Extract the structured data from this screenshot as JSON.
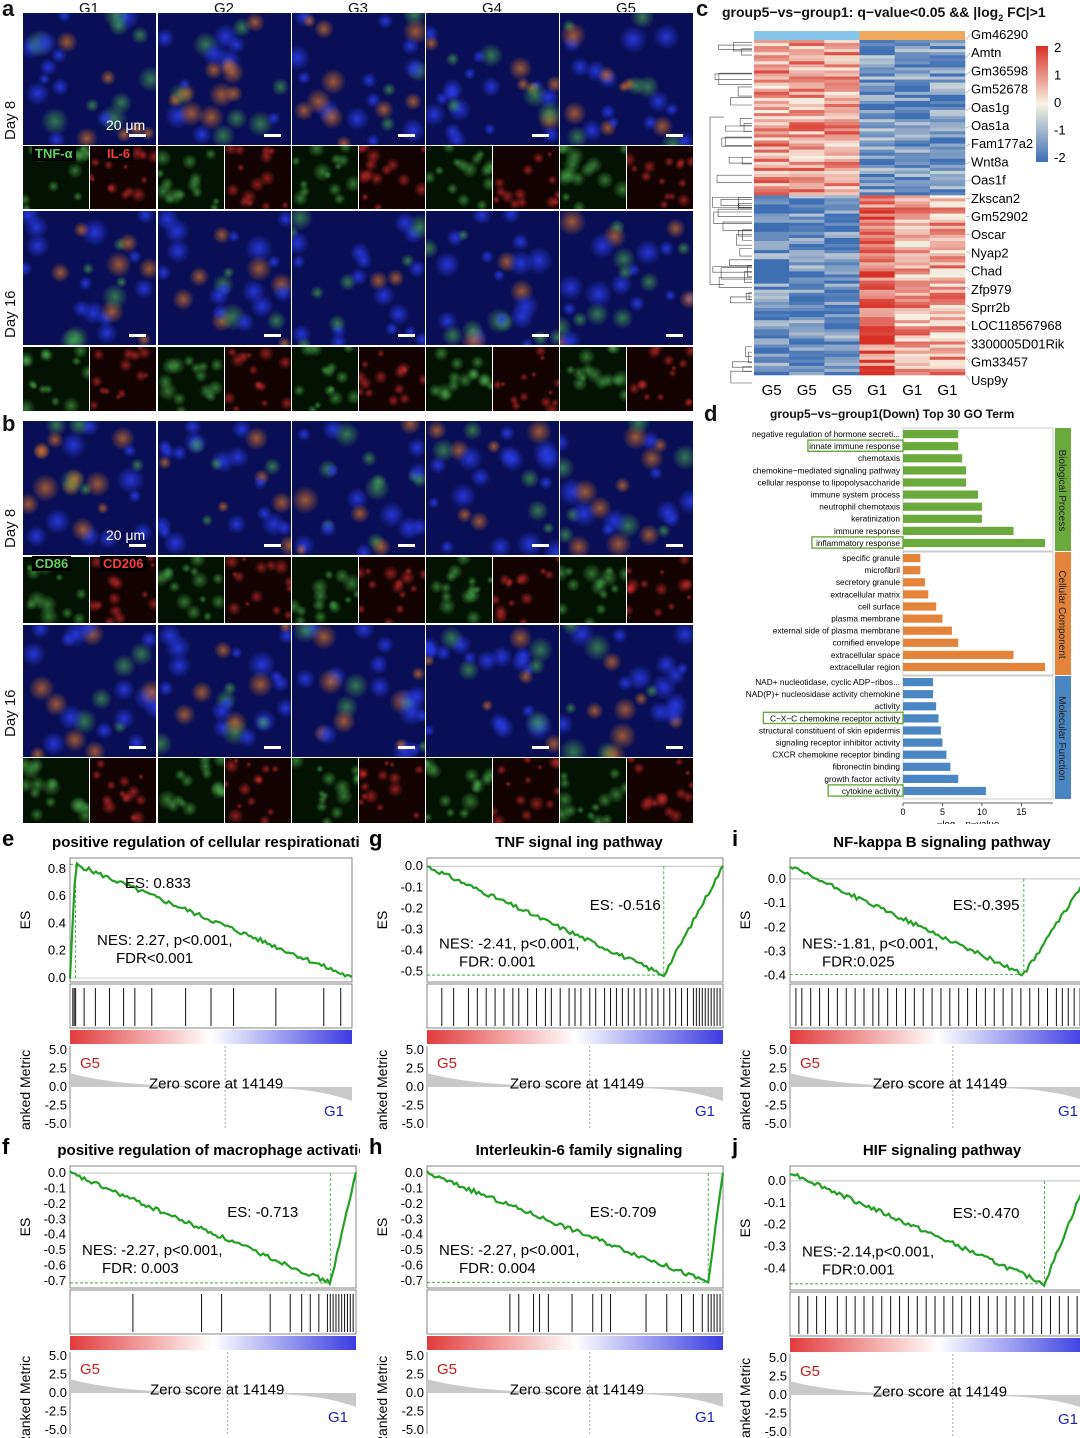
{
  "panel_labels": {
    "a": "a",
    "b": "b",
    "c": "c",
    "d": "d",
    "e": "e",
    "f": "f",
    "g": "g",
    "h": "h",
    "i": "i",
    "j": "j"
  },
  "groups": [
    "G1",
    "G2",
    "G3",
    "G4",
    "G5"
  ],
  "day_labels": {
    "day8": "Day 8",
    "day16": "Day 16"
  },
  "scale_label": "20 μm",
  "stain_a": {
    "green": "TNF-α",
    "red": "IL-6"
  },
  "stain_b": {
    "green": "CD86",
    "red": "CD206"
  },
  "heatmap": {
    "title_pre": "group5−vs−group1: q−value<0.05 && |log",
    "title_sub": "2",
    "title_post": " FC|>1",
    "genes": [
      "Gm46290",
      "Amtn",
      "Gm36598",
      "Gm52678",
      "Oas1g",
      "Oas1a",
      "Fam177a2",
      "Wnt8a",
      "Oas1f",
      "Zkscan2",
      "Gm52902",
      "Oscar",
      "Nyap2",
      "Chad",
      "Zfp979",
      "Sprr2b",
      "LOC118567968",
      "3300005D01Rik",
      "Gm33457",
      "Usp9y"
    ],
    "columns": [
      "G5",
      "G5",
      "G5",
      "G1",
      "G1",
      "G1"
    ],
    "legend_ticks": [
      "2",
      "1",
      "0",
      "-1",
      "-2"
    ],
    "colors": {
      "high": "#d73027",
      "mid": "#f7f3e3",
      "low": "#3e6fb3",
      "g5bar": "#87c5ea",
      "g1bar": "#f0a85c"
    }
  },
  "go": {
    "title": "group5−vs−group1(Down) Top 30 GO Term",
    "xlabel_pre": "−log",
    "xlabel_sub": "10",
    "xlabel_post": " p−value",
    "xticks": [
      "0",
      "5",
      "10",
      "15"
    ],
    "categories": [
      {
        "name": "Biological Process",
        "color": "#6aaa3c",
        "terms": [
          "negative regulation of hormone secreti...",
          "innate immune response",
          "chemotaxis",
          "chemokine−mediated signaling pathway",
          "cellular response to lipopolysaccharide",
          "immune system process",
          "neutrophil chemotaxis",
          "keratinization",
          "immune response",
          "inflammatory response"
        ],
        "values": [
          7,
          7,
          7.5,
          8,
          8,
          9.5,
          10,
          10,
          14,
          18
        ],
        "boxed": [
          1,
          9
        ]
      },
      {
        "name": "Cellular Component",
        "color": "#e4843a",
        "terms": [
          "specific granule",
          "microfibril",
          "secretory granule",
          "extracellular matrix",
          "cell surface",
          "plasma membrane",
          "external side of plasma membrane",
          "cornified envelope",
          "extracellular space",
          "extracellular region"
        ],
        "values": [
          2.2,
          2.2,
          2.8,
          3.2,
          4.2,
          5,
          6.2,
          7,
          14,
          18
        ],
        "boxed": []
      },
      {
        "name": "Molecular Function",
        "color": "#4a87c2",
        "terms": [
          "NAD+ nucleotidase, cyclic ADP−ribos...",
          "NAD(P)+ nucleosidase activity chemokine",
          "activity",
          "C−X−C chemokine receptor activity",
          "structural constituent of skin epidermis",
          "signaling receptor inhibitor activity",
          "CXCR chemokine receptor binding",
          "fibronectin binding",
          "growth factor activity",
          "cytokine activity"
        ],
        "values": [
          3.8,
          3.8,
          4.2,
          4.5,
          4.8,
          5,
          5.5,
          6,
          7,
          10.5
        ],
        "boxed": [
          3,
          9
        ]
      }
    ]
  },
  "gsea_common": {
    "es_label": "ES",
    "ranked_label": "Ranked Metric",
    "zero_score": "Zero score at 14149",
    "left": "G5",
    "right": "G1",
    "rank_ticks": [
      "5.0",
      "2.5",
      "0.0",
      "-2.5",
      "-5.0"
    ]
  },
  "gsea": [
    {
      "label": "e",
      "title": "positive regulation of cellular respirationation",
      "es": "ES: 0.833",
      "nes": "NES: 2.27, p<0.001,",
      "fdr": "FDR<0.001",
      "yticks": [
        "0.8",
        "0.6",
        "0.4",
        "0.2",
        "0.0"
      ],
      "ymin": 0.0,
      "ymax": 0.85,
      "min_es": 0.0,
      "max_es": 0.833,
      "peak_pos": 0.02,
      "direction": "pos",
      "hits": [
        0.01,
        0.015,
        0.02,
        0.05,
        0.09,
        0.14,
        0.19,
        0.23,
        0.29,
        0.41,
        0.5,
        0.58,
        0.73,
        0.9,
        0.96
      ]
    },
    {
      "label": "f",
      "title": "positive regulation of macrophage activation",
      "es": "ES: -0.713",
      "nes": "NES: -2.27, p<0.001,",
      "fdr": "FDR: 0.003",
      "yticks": [
        "0.0",
        "-0.1",
        "-0.2",
        "-0.3",
        "-0.4",
        "-0.5",
        "-0.6",
        "-0.7"
      ],
      "ymin": -0.72,
      "ymax": 0.02,
      "min_es": -0.713,
      "max_es": 0.0,
      "peak_pos": 0.91,
      "direction": "neg",
      "hits": [
        0.22,
        0.46,
        0.53,
        0.7,
        0.77,
        0.81,
        0.84,
        0.87,
        0.9,
        0.91,
        0.92,
        0.93,
        0.94,
        0.95,
        0.96,
        0.97,
        0.98,
        0.99
      ]
    },
    {
      "label": "g",
      "title": "TNF signal ing pathway",
      "es": "ES: -0.516",
      "nes": "NES: -2.41, p<0.001,",
      "fdr": "FDR: 0.001",
      "yticks": [
        "0.0",
        "-0.1",
        "-0.2",
        "-0.3",
        "-0.4",
        "-0.5"
      ],
      "ymin": -0.53,
      "ymax": 0.02,
      "min_es": -0.516,
      "max_es": 0.0,
      "peak_pos": 0.8,
      "direction": "neg",
      "hits": [
        0.05,
        0.09,
        0.14,
        0.17,
        0.2,
        0.23,
        0.26,
        0.29,
        0.31,
        0.34,
        0.37,
        0.4,
        0.42,
        0.45,
        0.48,
        0.5,
        0.52,
        0.55,
        0.57,
        0.6,
        0.62,
        0.64,
        0.66,
        0.68,
        0.7,
        0.72,
        0.74,
        0.76,
        0.78,
        0.8,
        0.82,
        0.84,
        0.86,
        0.88,
        0.9,
        0.91,
        0.92,
        0.93,
        0.94,
        0.95,
        0.96,
        0.97,
        0.98,
        0.99
      ]
    },
    {
      "label": "h",
      "title": "Interleukin-6 family signaling",
      "es": "ES:-0.709",
      "nes": "NES: -2.27, p<0.001,",
      "fdr": "FDR: 0.004",
      "yticks": [
        "0.0",
        "-0.1",
        "-0.2",
        "-0.3",
        "-0.4",
        "-0.5",
        "-0.6",
        "-0.7"
      ],
      "ymin": -0.72,
      "ymax": 0.02,
      "min_es": -0.709,
      "max_es": 0.0,
      "peak_pos": 0.95,
      "direction": "neg",
      "hits": [
        0.28,
        0.31,
        0.36,
        0.38,
        0.41,
        0.49,
        0.56,
        0.59,
        0.62,
        0.74,
        0.81,
        0.86,
        0.9,
        0.93,
        0.95,
        0.96,
        0.97,
        0.98,
        0.99
      ]
    },
    {
      "label": "i",
      "title": "NF-kappa B signaling pathway",
      "es": "ES:-0.395",
      "nes": "NES:-1.81, p<0.001,",
      "fdr": "FDR:0.025",
      "yticks": [
        "0.0",
        "-0.1",
        "-0.2",
        "-0.3",
        "-0.4"
      ],
      "ymin": -0.41,
      "ymax": 0.07,
      "min_es": -0.395,
      "max_es": 0.05,
      "peak_pos": 0.79,
      "direction": "neg",
      "hits": [
        0.02,
        0.04,
        0.07,
        0.1,
        0.13,
        0.16,
        0.19,
        0.22,
        0.25,
        0.28,
        0.3,
        0.33,
        0.36,
        0.39,
        0.42,
        0.45,
        0.48,
        0.51,
        0.54,
        0.57,
        0.6,
        0.63,
        0.66,
        0.69,
        0.72,
        0.75,
        0.78,
        0.81,
        0.84,
        0.87,
        0.9,
        0.92,
        0.94,
        0.96,
        0.98
      ]
    },
    {
      "label": "j",
      "title": "HIF signaling pathway",
      "es": "ES:-0.470",
      "nes": "NES:-2.14,p<0.001,",
      "fdr": "FDR:0.001",
      "yticks": [
        "0.0",
        "-0.1",
        "-0.2",
        "-0.3",
        "-0.4"
      ],
      "ymin": -0.48,
      "ymax": 0.05,
      "min_es": -0.47,
      "max_es": 0.04,
      "peak_pos": 0.86,
      "direction": "neg",
      "hits": [
        0.03,
        0.06,
        0.09,
        0.12,
        0.16,
        0.19,
        0.22,
        0.25,
        0.28,
        0.31,
        0.34,
        0.37,
        0.4,
        0.43,
        0.46,
        0.49,
        0.52,
        0.55,
        0.58,
        0.61,
        0.64,
        0.67,
        0.7,
        0.73,
        0.76,
        0.79,
        0.82,
        0.85,
        0.88,
        0.91,
        0.94,
        0.97
      ]
    }
  ]
}
